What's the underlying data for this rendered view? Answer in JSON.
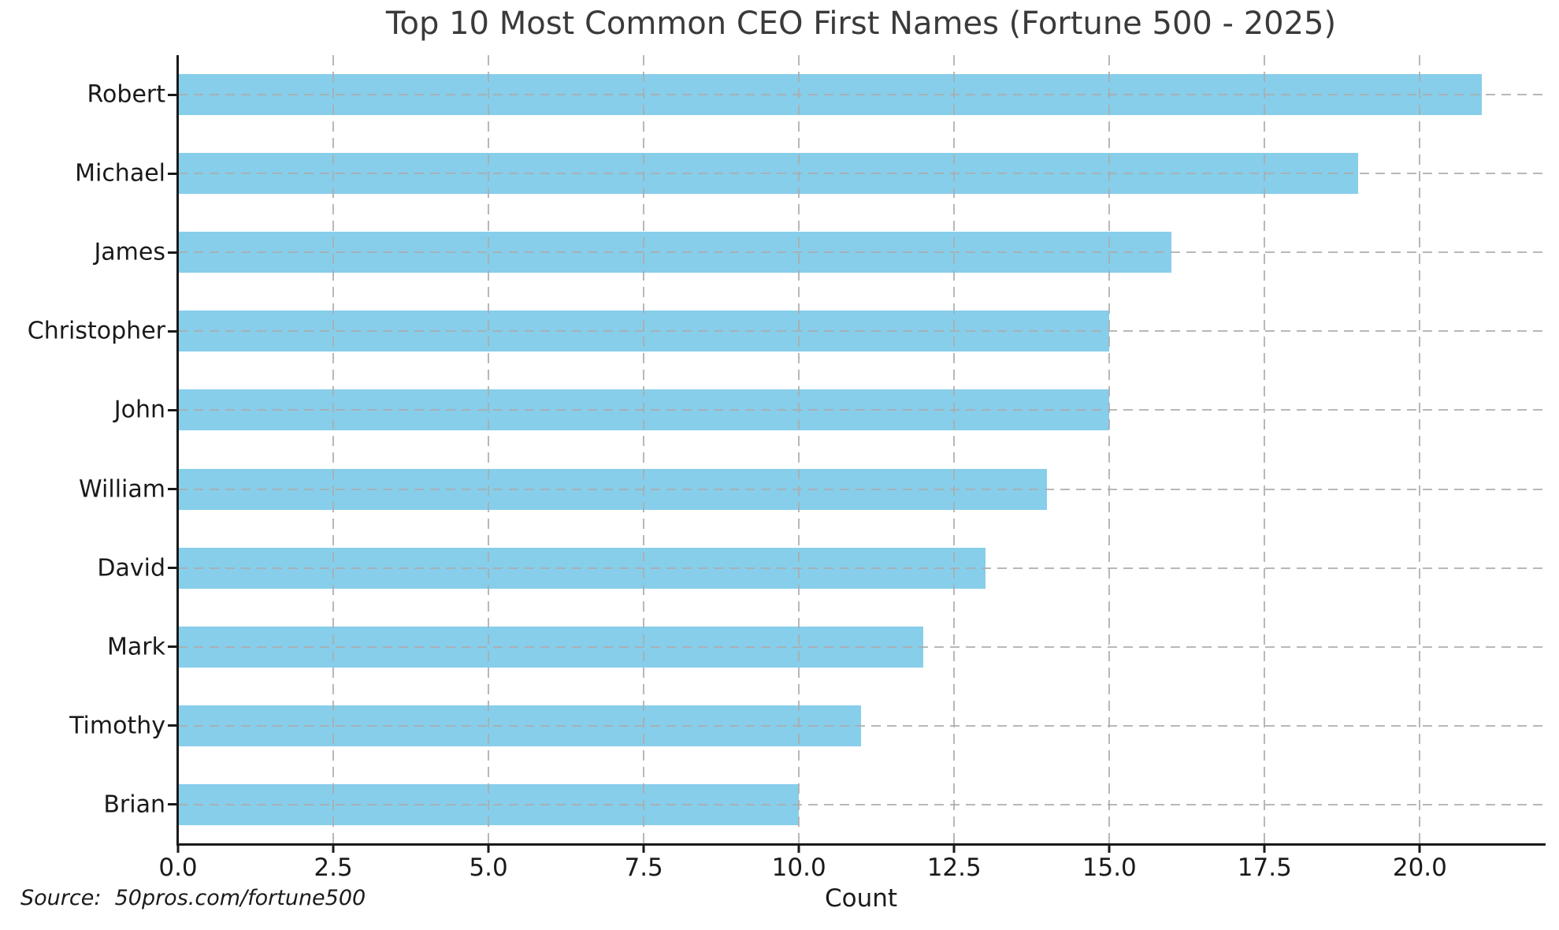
{
  "chart_data": {
    "type": "bar",
    "orientation": "horizontal",
    "title": "Top 10 Most Common CEO First Names (Fortune 500 - 2025)",
    "categories": [
      "Robert",
      "Michael",
      "James",
      "Christopher",
      "John",
      "William",
      "David",
      "Mark",
      "Timothy",
      "Brian"
    ],
    "values": [
      21,
      19,
      16,
      15,
      15,
      14,
      13,
      12,
      11,
      10
    ],
    "xlabel": "Count",
    "ylabel": "",
    "xlim": [
      0,
      22
    ],
    "xticks": [
      0,
      2.5,
      5,
      7.5,
      10,
      12.5,
      15,
      17.5,
      20
    ],
    "xtick_labels": [
      "0.0",
      "2.5",
      "5.0",
      "7.5",
      "10.0",
      "12.5",
      "15.0",
      "17.5",
      "20.0"
    ],
    "grid": true,
    "grid_style": "dashed",
    "grid_over_bars": true,
    "legend": false,
    "bar_color": "#87CEEB",
    "grid_color": "#acacac",
    "axis_color": "#1a1a1a",
    "title_color": "#3a3a3a",
    "source_note": "Source:  50pros.com/fortune500"
  }
}
